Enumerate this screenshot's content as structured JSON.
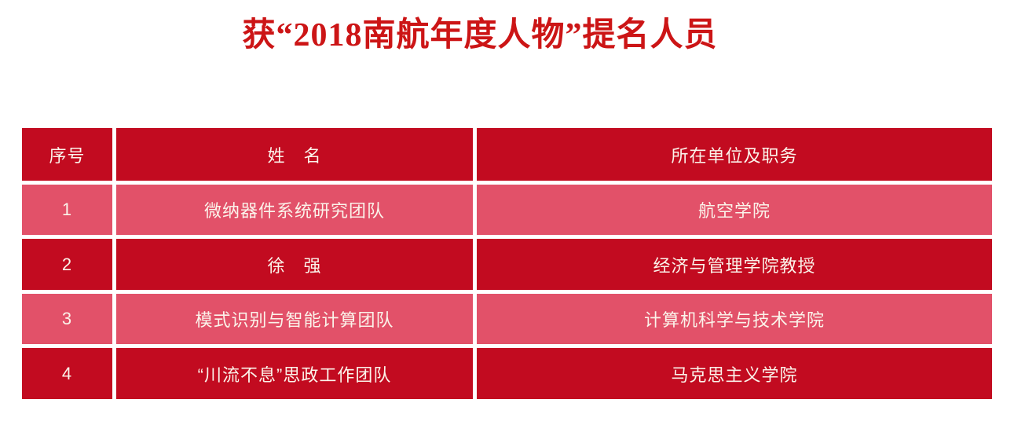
{
  "page": {
    "background_color": "#ffffff"
  },
  "title": {
    "text": "获“2018南航年度人物”提名人员",
    "color": "#cc1516"
  },
  "table": {
    "colors": {
      "header_bg": "#c20b20",
      "row_dark_bg": "#c20b20",
      "row_light_bg": "#e25169",
      "cell_text": "#fbf3ea",
      "gap": "#ffffff"
    },
    "columns": [
      {
        "key": "index",
        "label": "序号"
      },
      {
        "key": "name",
        "label": "姓　名"
      },
      {
        "key": "unit",
        "label": "所在单位及职务"
      }
    ],
    "rows": [
      {
        "index": "1",
        "name": "微纳器件系统研究团队",
        "unit": "航空学院",
        "variant": "light"
      },
      {
        "index": "2",
        "name": "徐　强",
        "unit": "经济与管理学院教授",
        "variant": "dark"
      },
      {
        "index": "3",
        "name": "模式识别与智能计算团队",
        "unit": "计算机科学与技术学院",
        "variant": "light"
      },
      {
        "index": "4",
        "name": "“川流不息”思政工作团队",
        "unit": "马克思主义学院",
        "variant": "dark"
      }
    ]
  }
}
